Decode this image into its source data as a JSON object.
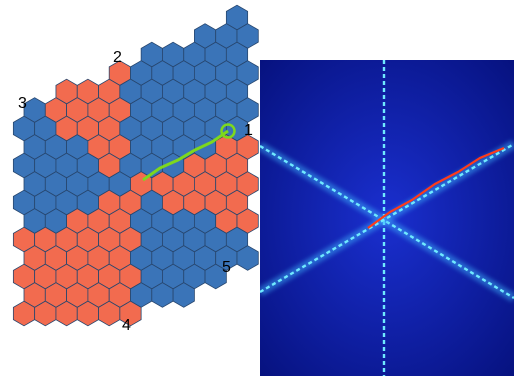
{
  "panel_a": {
    "colors": {
      "blue": "#3a74b8",
      "orange": "#f26b4f",
      "edge": "#27466e",
      "path": "#7dd81e"
    },
    "labels": [
      "1",
      "2",
      "3",
      "4",
      "5"
    ],
    "site_grid": {
      "columns": 11,
      "rows": 17
    }
  },
  "panel_b": {
    "colors": {
      "background": "#0a1590",
      "line": "#6fe9ff",
      "hot": "#ff3b1a"
    },
    "line_count": 3
  }
}
